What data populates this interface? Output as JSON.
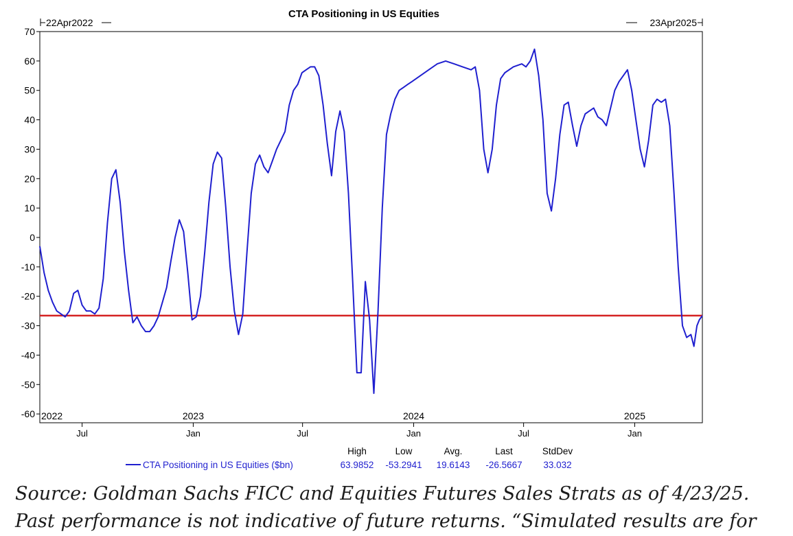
{
  "chart_data": {
    "type": "line",
    "title": "CTA Positioning in US Equities",
    "start_label": "22Apr2022",
    "end_label": "23Apr2025",
    "x_range": [
      "2022-04-22",
      "2025-04-23"
    ],
    "ylim": [
      -63,
      70
    ],
    "y_ticks": [
      70,
      60,
      50,
      40,
      30,
      20,
      10,
      0,
      -10,
      -20,
      -30,
      -40,
      -50,
      -60
    ],
    "year_labels": [
      {
        "date": "2022-04-22",
        "label": "2022"
      },
      {
        "date": "2023-01-01",
        "label": "2023"
      },
      {
        "date": "2024-01-01",
        "label": "2024"
      },
      {
        "date": "2025-01-01",
        "label": "2025"
      }
    ],
    "month_labels": [
      {
        "date": "2022-07-01",
        "label": "Jul"
      },
      {
        "date": "2023-01-01",
        "label": "Jan"
      },
      {
        "date": "2023-07-01",
        "label": "Jul"
      },
      {
        "date": "2024-01-01",
        "label": "Jan"
      },
      {
        "date": "2024-07-01",
        "label": "Jul"
      },
      {
        "date": "2025-01-01",
        "label": "Jan"
      }
    ],
    "reference_line": {
      "y": -26.5667,
      "color": "#d42020"
    },
    "series": [
      {
        "name": "CTA Positioning in US Equities ($bn)",
        "color": "#1f1fcf",
        "points": [
          [
            "2022-04-22",
            -3
          ],
          [
            "2022-04-29",
            -12
          ],
          [
            "2022-05-06",
            -18
          ],
          [
            "2022-05-13",
            -22
          ],
          [
            "2022-05-20",
            -25
          ],
          [
            "2022-05-27",
            -26
          ],
          [
            "2022-06-03",
            -27
          ],
          [
            "2022-06-10",
            -25
          ],
          [
            "2022-06-17",
            -19
          ],
          [
            "2022-06-24",
            -18
          ],
          [
            "2022-07-01",
            -23
          ],
          [
            "2022-07-08",
            -25
          ],
          [
            "2022-07-15",
            -25
          ],
          [
            "2022-07-22",
            -26
          ],
          [
            "2022-07-29",
            -24
          ],
          [
            "2022-08-05",
            -14
          ],
          [
            "2022-08-12",
            5
          ],
          [
            "2022-08-19",
            20
          ],
          [
            "2022-08-26",
            23
          ],
          [
            "2022-09-02",
            12
          ],
          [
            "2022-09-09",
            -5
          ],
          [
            "2022-09-16",
            -18
          ],
          [
            "2022-09-23",
            -29
          ],
          [
            "2022-09-30",
            -27
          ],
          [
            "2022-10-07",
            -30
          ],
          [
            "2022-10-14",
            -32
          ],
          [
            "2022-10-21",
            -32
          ],
          [
            "2022-10-28",
            -30
          ],
          [
            "2022-11-04",
            -27
          ],
          [
            "2022-11-11",
            -22
          ],
          [
            "2022-11-18",
            -17
          ],
          [
            "2022-11-25",
            -8
          ],
          [
            "2022-12-02",
            0
          ],
          [
            "2022-12-09",
            6
          ],
          [
            "2022-12-16",
            2
          ],
          [
            "2022-12-23",
            -12
          ],
          [
            "2022-12-30",
            -28
          ],
          [
            "2023-01-06",
            -27
          ],
          [
            "2023-01-13",
            -20
          ],
          [
            "2023-01-20",
            -5
          ],
          [
            "2023-01-27",
            12
          ],
          [
            "2023-02-03",
            25
          ],
          [
            "2023-02-10",
            29
          ],
          [
            "2023-02-17",
            27
          ],
          [
            "2023-02-24",
            10
          ],
          [
            "2023-03-03",
            -10
          ],
          [
            "2023-03-10",
            -25
          ],
          [
            "2023-03-17",
            -33
          ],
          [
            "2023-03-24",
            -26
          ],
          [
            "2023-03-31",
            -5
          ],
          [
            "2023-04-07",
            15
          ],
          [
            "2023-04-14",
            25
          ],
          [
            "2023-04-21",
            28
          ],
          [
            "2023-04-28",
            24
          ],
          [
            "2023-05-05",
            22
          ],
          [
            "2023-05-12",
            26
          ],
          [
            "2023-05-19",
            30
          ],
          [
            "2023-05-26",
            33
          ],
          [
            "2023-06-02",
            36
          ],
          [
            "2023-06-09",
            45
          ],
          [
            "2023-06-16",
            50
          ],
          [
            "2023-06-23",
            52
          ],
          [
            "2023-06-30",
            56
          ],
          [
            "2023-07-07",
            57
          ],
          [
            "2023-07-14",
            58
          ],
          [
            "2023-07-21",
            58
          ],
          [
            "2023-07-28",
            55
          ],
          [
            "2023-08-04",
            45
          ],
          [
            "2023-08-11",
            32
          ],
          [
            "2023-08-18",
            21
          ],
          [
            "2023-08-25",
            36
          ],
          [
            "2023-09-01",
            43
          ],
          [
            "2023-09-08",
            36
          ],
          [
            "2023-09-15",
            15
          ],
          [
            "2023-09-22",
            -15
          ],
          [
            "2023-09-29",
            -46
          ],
          [
            "2023-10-06",
            -46
          ],
          [
            "2023-10-13",
            -15
          ],
          [
            "2023-10-20",
            -28
          ],
          [
            "2023-10-27",
            -53
          ],
          [
            "2023-11-03",
            -25
          ],
          [
            "2023-11-10",
            10
          ],
          [
            "2023-11-17",
            35
          ],
          [
            "2023-11-24",
            42
          ],
          [
            "2023-12-01",
            47
          ],
          [
            "2023-12-08",
            50
          ],
          [
            "2023-12-15",
            51
          ],
          [
            "2023-12-22",
            52
          ],
          [
            "2023-12-29",
            53
          ],
          [
            "2024-01-12",
            55
          ],
          [
            "2024-01-26",
            57
          ],
          [
            "2024-02-09",
            59
          ],
          [
            "2024-02-23",
            60
          ],
          [
            "2024-03-08",
            59
          ],
          [
            "2024-03-22",
            58
          ],
          [
            "2024-04-05",
            57
          ],
          [
            "2024-04-12",
            58
          ],
          [
            "2024-04-19",
            50
          ],
          [
            "2024-04-26",
            30
          ],
          [
            "2024-05-03",
            22
          ],
          [
            "2024-05-10",
            30
          ],
          [
            "2024-05-17",
            45
          ],
          [
            "2024-05-24",
            54
          ],
          [
            "2024-05-31",
            56
          ],
          [
            "2024-06-14",
            58
          ],
          [
            "2024-06-28",
            59
          ],
          [
            "2024-07-05",
            58
          ],
          [
            "2024-07-12",
            60
          ],
          [
            "2024-07-19",
            64
          ],
          [
            "2024-07-26",
            55
          ],
          [
            "2024-08-02",
            40
          ],
          [
            "2024-08-09",
            15
          ],
          [
            "2024-08-16",
            9
          ],
          [
            "2024-08-23",
            20
          ],
          [
            "2024-08-30",
            35
          ],
          [
            "2024-09-06",
            45
          ],
          [
            "2024-09-13",
            46
          ],
          [
            "2024-09-20",
            38
          ],
          [
            "2024-09-27",
            31
          ],
          [
            "2024-10-04",
            38
          ],
          [
            "2024-10-11",
            42
          ],
          [
            "2024-10-18",
            43
          ],
          [
            "2024-10-25",
            44
          ],
          [
            "2024-11-01",
            41
          ],
          [
            "2024-11-08",
            40
          ],
          [
            "2024-11-15",
            38
          ],
          [
            "2024-11-22",
            44
          ],
          [
            "2024-11-29",
            50
          ],
          [
            "2024-12-06",
            53
          ],
          [
            "2024-12-13",
            55
          ],
          [
            "2024-12-20",
            57
          ],
          [
            "2024-12-27",
            50
          ],
          [
            "2025-01-03",
            40
          ],
          [
            "2025-01-10",
            30
          ],
          [
            "2025-01-17",
            24
          ],
          [
            "2025-01-24",
            33
          ],
          [
            "2025-01-31",
            45
          ],
          [
            "2025-02-07",
            47
          ],
          [
            "2025-02-14",
            46
          ],
          [
            "2025-02-21",
            47
          ],
          [
            "2025-02-28",
            38
          ],
          [
            "2025-03-07",
            15
          ],
          [
            "2025-03-14",
            -10
          ],
          [
            "2025-03-21",
            -30
          ],
          [
            "2025-03-28",
            -34
          ],
          [
            "2025-04-04",
            -33
          ],
          [
            "2025-04-09",
            -37
          ],
          [
            "2025-04-14",
            -30
          ],
          [
            "2025-04-18",
            -28
          ],
          [
            "2025-04-23",
            -26.5667
          ]
        ]
      }
    ],
    "stats": {
      "headers": [
        "High",
        "Low",
        "Avg.",
        "Last",
        "StdDev"
      ],
      "values": [
        "63.9852",
        "-53.2941",
        "19.6143",
        "-26.5667",
        "33.032"
      ]
    }
  },
  "source_text": "Source: Goldman Sachs FICC and Equities Futures Sales Strats as of 4/23/25. Past performance is not indicative of future returns. “Simulated results are for"
}
